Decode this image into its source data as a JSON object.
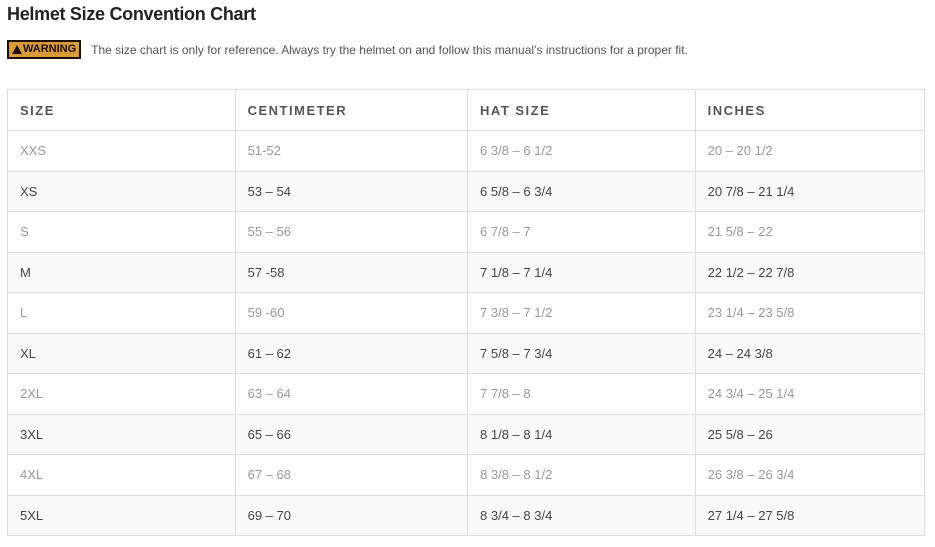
{
  "title": "Helmet Size Convention Chart",
  "warning": {
    "badge": "WARNING",
    "text": "The size chart is only for reference. Always try the helmet on and follow this manual’s instructions for a proper fit."
  },
  "columns": [
    "SIZE",
    "CENTIMETER",
    "HAT SIZE",
    "INCHES"
  ],
  "rows": [
    [
      "XXS",
      "51-52",
      "6 3/8 – 6 1/2",
      "20 – 20 1/2"
    ],
    [
      "XS",
      "53 – 54",
      "6 5/8 – 6 3/4",
      "20 7/8 – 21 1/4"
    ],
    [
      "S",
      "55 – 56",
      "6 7/8 – 7",
      "21 5/8 – 22"
    ],
    [
      "M",
      "57 -58",
      "7 1/8 – 7 1/4",
      "22 1/2 – 22 7/8"
    ],
    [
      "L",
      "59 -60",
      "7 3/8 – 7 1/2",
      "23 1/4 – 23 5/8"
    ],
    [
      "XL",
      "61 – 62",
      "7 5/8 – 7 3/4",
      "24 – 24 3/8"
    ],
    [
      "2XL",
      "63 – 64",
      "7 7/8 – 8",
      "24 3/4 – 25 1/4"
    ],
    [
      "3XL",
      "65 – 66",
      "8 1/8 – 8 1/4",
      "25 5/8 – 26"
    ],
    [
      "4XL",
      "67 – 68",
      "8 3/8 – 8 1/2",
      "26 3/8 – 26 3/4"
    ],
    [
      "5XL",
      "69 – 70",
      "8 3/4 – 8 3/4",
      "27 1/4 – 27 5/8"
    ]
  ]
}
